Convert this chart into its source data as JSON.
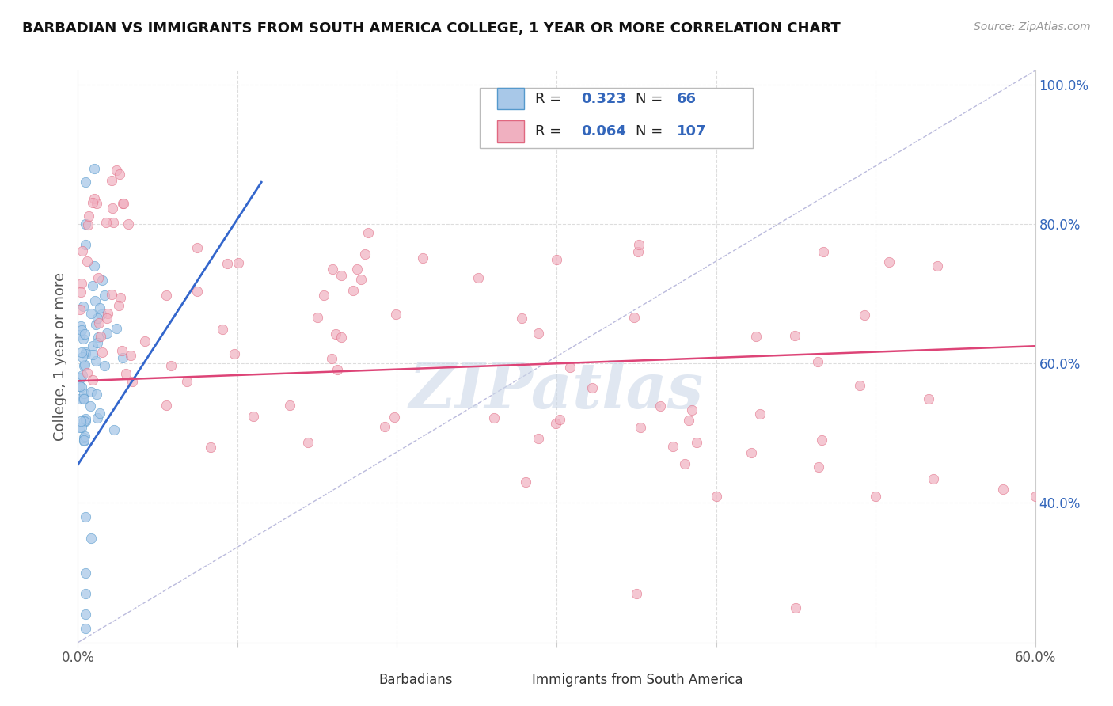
{
  "title": "BARBADIAN VS IMMIGRANTS FROM SOUTH AMERICA COLLEGE, 1 YEAR OR MORE CORRELATION CHART",
  "source": "Source: ZipAtlas.com",
  "ylabel": "College, 1 year or more",
  "xlim": [
    0.0,
    0.6
  ],
  "ylim": [
    0.2,
    1.02
  ],
  "blue_color": "#a8c8e8",
  "pink_color": "#f0b0c0",
  "blue_edge_color": "#5599cc",
  "pink_edge_color": "#e06880",
  "blue_line_color": "#3366cc",
  "pink_line_color": "#dd4477",
  "legend_text_color": "#3366bb",
  "watermark": "ZIPatlas",
  "watermark_color": "#ccd8e8",
  "R_blue": 0.323,
  "N_blue": 66,
  "R_pink": 0.064,
  "N_pink": 107,
  "grid_color": "#dddddd",
  "diag_color": "#bbbbdd",
  "blue_trend_x": [
    0.0,
    0.115
  ],
  "blue_trend_y": [
    0.455,
    0.86
  ],
  "pink_trend_x": [
    0.0,
    0.6
  ],
  "pink_trend_y": [
    0.575,
    0.625
  ],
  "title_fontsize": 13,
  "tick_label_fontsize": 12,
  "source_fontsize": 10,
  "ylabel_fontsize": 13
}
